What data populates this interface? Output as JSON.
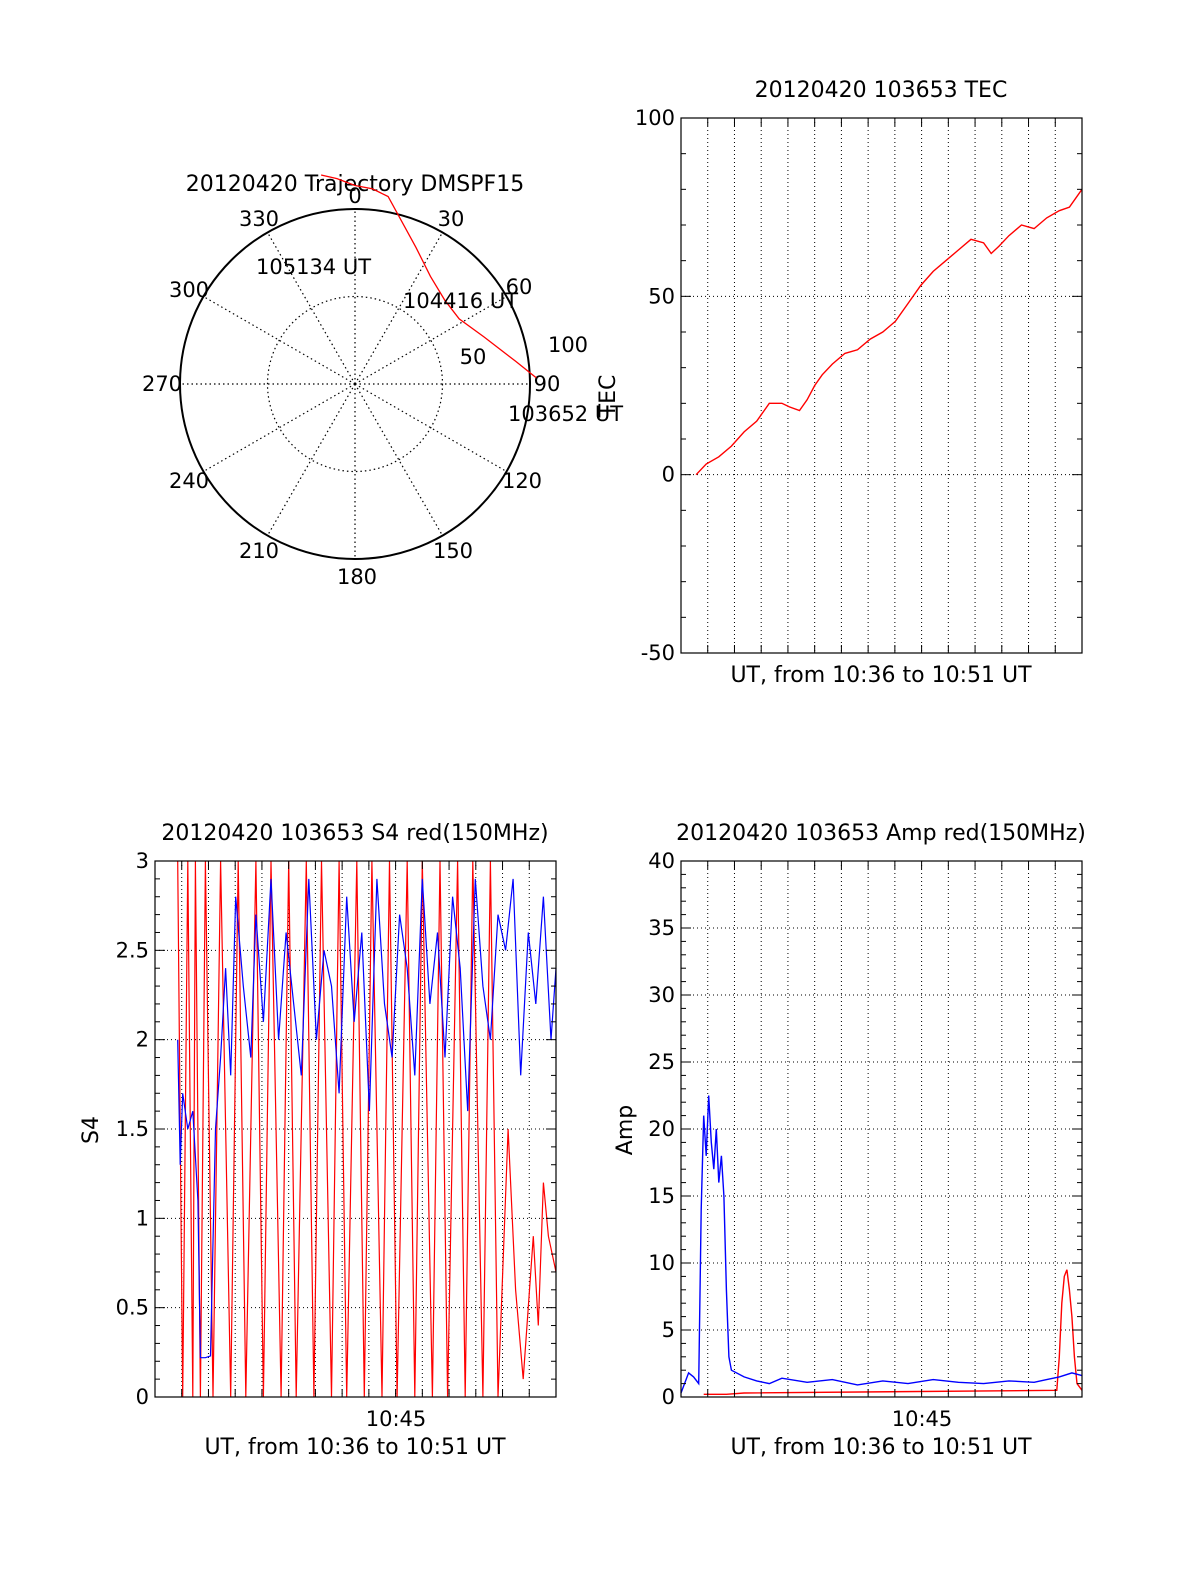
{
  "colors": {
    "primary": "#ff0000",
    "secondary": "#0000ff",
    "axis": "#000000",
    "grid": "#000000"
  },
  "chart_data": [
    {
      "type": "polar",
      "title": "20120420 Trajectory DMSPF15",
      "azimuth_ticks": [
        "0",
        "30",
        "60",
        "90",
        "120",
        "150",
        "180",
        "210",
        "240",
        "270",
        "300",
        "330"
      ],
      "radial_ticks": [
        "50",
        "100"
      ],
      "grid": true,
      "series": [
        {
          "color": "#ff0000",
          "points": [
            [
              88,
              103.6
            ],
            [
              82,
              92.8
            ],
            [
              70,
              78.5
            ],
            [
              58,
              70.2
            ],
            [
              47,
              70.2
            ],
            [
              35,
              75.1
            ],
            [
              24,
              85.5
            ],
            [
              10,
              108.8
            ],
            [
              5,
              112.0
            ],
            [
              0,
              113.4
            ],
            [
              -5,
              117.8
            ],
            [
              -9.2,
              121.0
            ]
          ]
        }
      ],
      "annotations": [
        {
          "text": "105134 UT",
          "azimuth": -9.2,
          "radius": 121.0
        },
        {
          "text": "104416 UT",
          "azimuth": 58,
          "radius": 70.2
        },
        {
          "text": "103652 UT",
          "azimuth": 88,
          "radius": 103.6
        }
      ]
    },
    {
      "type": "line",
      "title": "20120420 103653 TEC",
      "xlabel": "UT, from 10:36 to 10:51 UT",
      "ylabel": "TEC",
      "xlim": [
        0,
        15.9
      ],
      "ylim": [
        -50,
        100
      ],
      "yticks": [
        "100",
        "50",
        "0",
        "-50"
      ],
      "grid": true,
      "series": [
        {
          "color": "#ff0000",
          "x": [
            0.6,
            1,
            1.5,
            2,
            2.5,
            3,
            3.5,
            4,
            4.3,
            4.7,
            5,
            5.3,
            5.6,
            6,
            6.5,
            7,
            7.5,
            8,
            8.5,
            9,
            9.5,
            10,
            10.5,
            11,
            11.5,
            12,
            12.3,
            12.6,
            13,
            13.5,
            14,
            14.5,
            15,
            15.4,
            15.9
          ],
          "y": [
            0,
            3,
            5,
            8,
            12,
            15,
            20,
            20,
            19,
            18,
            21,
            25,
            28,
            31,
            34,
            35,
            38,
            40,
            43,
            48,
            53,
            57,
            60,
            63,
            66,
            65,
            62,
            64,
            67,
            70,
            69,
            72,
            74,
            75,
            80
          ]
        }
      ]
    },
    {
      "type": "line",
      "title": "20120420 103653 S4 red(150MHz)",
      "xlabel": "UT, from 10:36 to 10:51 UT",
      "ylabel": "S4",
      "xticks": [
        "10:45"
      ],
      "xlim": [
        0,
        15.9
      ],
      "ylim": [
        0,
        3
      ],
      "yticks": [
        "3",
        "2.5",
        "2",
        "1.5",
        "1",
        "0.5",
        "0"
      ],
      "grid": true,
      "series": [
        {
          "color": "#ff0000",
          "x": [
            0.9,
            1.1,
            1.3,
            1.5,
            1.6,
            1.8,
            2,
            2.3,
            2.6,
            3,
            3.3,
            3.6,
            4,
            4.3,
            4.6,
            5,
            5.3,
            5.6,
            6,
            6.3,
            6.6,
            7,
            7.3,
            7.6,
            8,
            8.3,
            8.6,
            9,
            9.3,
            9.6,
            10,
            10.3,
            10.6,
            11,
            11.3,
            11.6,
            12,
            12.3,
            12.6,
            13,
            13.3,
            13.6,
            14,
            14.3,
            14.6,
            15,
            15.2,
            15.4,
            15.6,
            15.9
          ],
          "y": [
            3,
            0,
            3,
            0,
            3,
            0,
            3,
            0,
            3,
            0,
            3,
            0,
            3,
            0,
            3,
            0,
            3,
            0,
            3,
            0,
            3,
            0,
            3,
            0,
            3,
            0,
            3,
            0,
            3,
            0,
            3,
            0,
            3,
            0,
            3,
            0,
            3,
            0,
            3,
            0,
            3,
            0,
            1.5,
            0.6,
            0.1,
            0.9,
            0.4,
            1.2,
            0.9,
            0.7
          ]
        },
        {
          "color": "#0000ff",
          "x": [
            0.9,
            1,
            1.1,
            1.3,
            1.5,
            1.7,
            1.8,
            2,
            2.2,
            2.4,
            2.6,
            2.8,
            3,
            3.2,
            3.5,
            3.8,
            4,
            4.3,
            4.6,
            4.9,
            5.2,
            5.5,
            5.8,
            6.1,
            6.4,
            6.7,
            7,
            7.3,
            7.6,
            7.9,
            8.2,
            8.5,
            8.8,
            9.1,
            9.4,
            9.7,
            10,
            10.3,
            10.6,
            10.9,
            11.2,
            11.5,
            11.8,
            12.1,
            12.4,
            12.7,
            13,
            13.3,
            13.6,
            13.9,
            14.2,
            14.5,
            14.8,
            15.1,
            15.4,
            15.7,
            15.9
          ],
          "y": [
            2.0,
            1.3,
            1.7,
            1.5,
            1.6,
            1.1,
            0.22,
            0.22,
            0.23,
            1.5,
            1.9,
            2.4,
            1.8,
            2.8,
            2.3,
            1.9,
            2.7,
            2.1,
            2.9,
            2.0,
            2.6,
            2.2,
            1.8,
            2.9,
            2.0,
            2.5,
            2.3,
            1.7,
            2.8,
            2.1,
            2.6,
            1.6,
            2.9,
            2.2,
            1.9,
            2.7,
            2.4,
            1.8,
            2.9,
            2.2,
            2.6,
            1.9,
            2.8,
            2.4,
            1.6,
            2.9,
            2.3,
            2.0,
            2.7,
            2.5,
            2.9,
            1.8,
            2.6,
            2.2,
            2.8,
            2.0,
            2.4
          ]
        }
      ]
    },
    {
      "type": "line",
      "title": "20120420 103653 Amp red(150MHz)",
      "xlabel": "UT, from 10:36 to 10:51 UT",
      "ylabel": "Amp",
      "xticks": [
        "10:45"
      ],
      "xlim": [
        0,
        15.9
      ],
      "ylim": [
        0,
        40
      ],
      "yticks": [
        "40",
        "35",
        "30",
        "25",
        "20",
        "15",
        "10",
        "5",
        "0"
      ],
      "grid": true,
      "series": [
        {
          "color": "#ff0000",
          "x": [
            0.9,
            1.5,
            1.8,
            2.5,
            14.9,
            15.0,
            15.1,
            15.2,
            15.3,
            15.4,
            15.5,
            15.6,
            15.7,
            15.9
          ],
          "y": [
            0.2,
            0.2,
            0.2,
            0.3,
            0.5,
            3,
            7,
            9,
            9.5,
            8,
            6,
            3,
            1,
            0.5
          ]
        },
        {
          "color": "#0000ff",
          "x": [
            0,
            0.3,
            0.5,
            0.7,
            0.8,
            0.9,
            1.0,
            1.1,
            1.2,
            1.3,
            1.4,
            1.5,
            1.6,
            1.7,
            1.8,
            1.9,
            2.0,
            2.5,
            3,
            3.5,
            4,
            5,
            6,
            7,
            8,
            9,
            10,
            11,
            12,
            13,
            14,
            14.5,
            15,
            15.5,
            15.9
          ],
          "y": [
            0.3,
            1.8,
            1.5,
            1.0,
            14,
            21,
            18,
            22.5,
            19,
            17,
            20,
            16,
            18,
            15,
            8,
            3,
            2,
            1.5,
            1.2,
            1.0,
            1.4,
            1.1,
            1.3,
            0.9,
            1.2,
            1.0,
            1.3,
            1.1,
            1.0,
            1.2,
            1.1,
            1.3,
            1.5,
            1.8,
            1.6
          ]
        }
      ]
    }
  ]
}
